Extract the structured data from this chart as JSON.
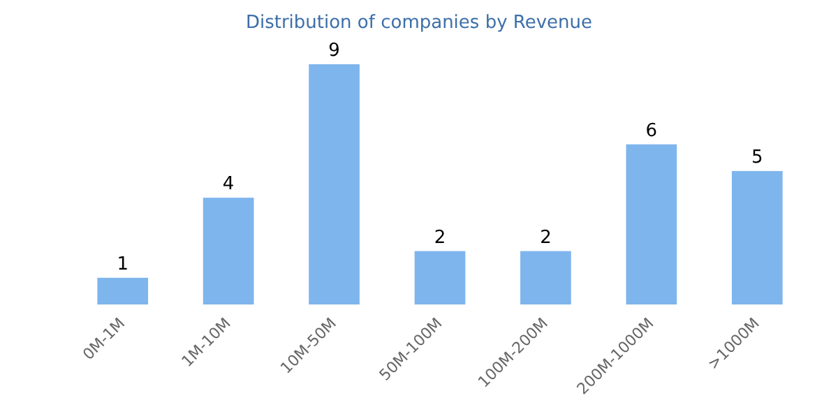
{
  "chart_data": {
    "type": "bar",
    "title": "Distribution of companies by Revenue",
    "categories": [
      "0M-1M",
      "1M-10M",
      "10M-50M",
      "50M-100M",
      "100M-200M",
      "200M-1000M",
      ">1000M"
    ],
    "values": [
      1,
      4,
      9,
      2,
      2,
      6,
      5
    ],
    "color": "#7eb5ed",
    "data_labels": true
  }
}
